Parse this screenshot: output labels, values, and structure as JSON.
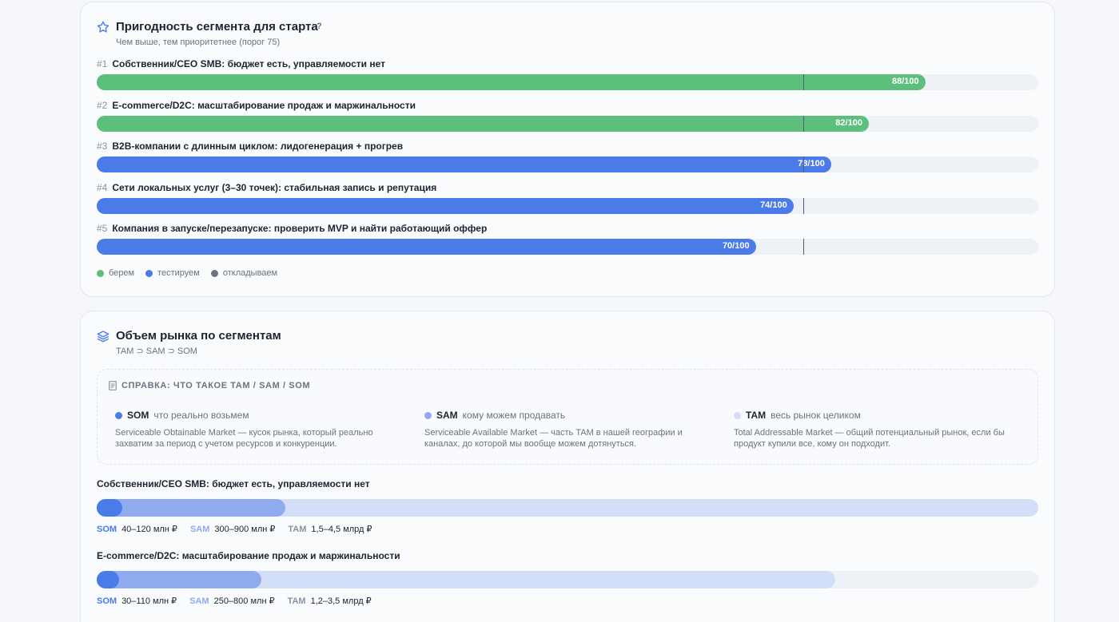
{
  "suitability": {
    "icon": "star-icon",
    "title": "Пригодность сегмента для старта",
    "help": "?",
    "subtitle": "Чем выше, тем приоритетнее (порог 75)",
    "threshold": 75,
    "segments": [
      {
        "rank": "#1",
        "label": "Собственник/CEO SMB: бюджет есть, управляемости нет",
        "score": 88,
        "score_label": "88/100",
        "status": "берем"
      },
      {
        "rank": "#2",
        "label": "E-commerce/D2C: масштабирование продаж и маржинальности",
        "score": 82,
        "score_label": "82/100",
        "status": "берем"
      },
      {
        "rank": "#3",
        "label": "B2B-компании с длинным циклом: лидогенерация + прогрев",
        "score": 78,
        "score_label": "78/100",
        "status": "тестируем"
      },
      {
        "rank": "#4",
        "label": "Сети локальных услуг (3–30 точек): стабильная запись и репутация",
        "score": 74,
        "score_label": "74/100",
        "status": "тестируем"
      },
      {
        "rank": "#5",
        "label": "Компания в запуске/перезапуске: проверить MVP и найти работающий оффер",
        "score": 70,
        "score_label": "70/100",
        "status": "тестируем"
      }
    ],
    "legend": [
      {
        "label": "берем",
        "color": "#5dbf7c"
      },
      {
        "label": "тестируем",
        "color": "#4a7be8"
      },
      {
        "label": "откладываем",
        "color": "#6b7280"
      }
    ]
  },
  "market": {
    "icon": "layers-icon",
    "title": "Объем рынка по сегментам",
    "subtitle": "TAM ⊃ SAM ⊃ SOM",
    "reference": {
      "title": "СПРАВКА: ЧТО ТАКОЕ TAM / SAM / SOM",
      "items": [
        {
          "key": "SOM",
          "short": "что реально возьмем",
          "desc": "Serviceable Obtainable Market — кусок рынка, который реально захватим за период с учетом ресурсов и конкуренции.",
          "color": "#4a7be8"
        },
        {
          "key": "SAM",
          "short": "кому можем продавать",
          "desc": "Serviceable Available Market — часть TAM в нашей географии и каналах, до которой мы вообще можем дотянуться.",
          "color": "#8fabf0"
        },
        {
          "key": "TAM",
          "short": "весь рынок целиком",
          "desc": "Total Addressable Market — общий потенциальный рынок, если бы продукт купили все, кому он подходит.",
          "color": "#d3dff8"
        }
      ]
    },
    "segments": [
      {
        "title": "Собственник/CEO SMB: бюджет есть, управляемости нет",
        "som_label": "SOM",
        "som": "40–120 млн ₽",
        "sam_label": "SAM",
        "sam": "300–900 млн ₽",
        "tam_label": "TAM",
        "tam": "1,5–4,5 млрд ₽",
        "tam_frac": 1.0,
        "sam_frac": 0.2,
        "som_frac": 0.027
      },
      {
        "title": "E-commerce/D2C: масштабирование продаж и маржинальности",
        "som_label": "SOM",
        "som": "30–110 млн ₽",
        "sam_label": "SAM",
        "sam": "250–800 млн ₽",
        "tam_label": "TAM",
        "tam": "1,2–3,5 млрд ₽",
        "tam_frac": 0.784,
        "sam_frac": 0.175,
        "som_frac": 0.024
      }
    ]
  }
}
